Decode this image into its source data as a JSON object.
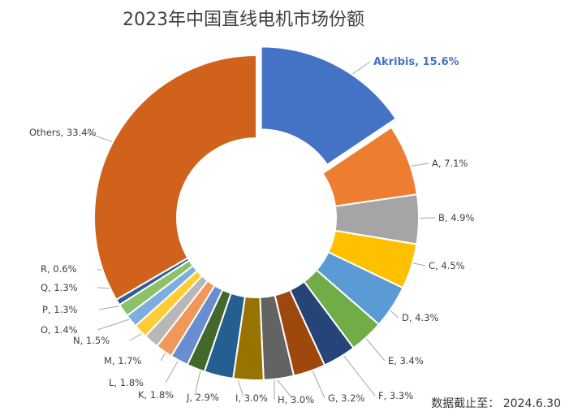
{
  "chart_data": {
    "type": "pie",
    "title": "2023年中国直线电机市场份额",
    "note": "数据截止至：  2024.6.30",
    "unit": "%",
    "slices": [
      {
        "name": "Akribis",
        "value": 15.6,
        "color": "#4472c4",
        "highlight": true
      },
      {
        "name": "A",
        "value": 7.1,
        "color": "#ed7d31"
      },
      {
        "name": "B",
        "value": 4.9,
        "color": "#a5a5a5"
      },
      {
        "name": "C",
        "value": 4.5,
        "color": "#ffc000"
      },
      {
        "name": "D",
        "value": 4.3,
        "color": "#5b9bd5"
      },
      {
        "name": "E",
        "value": 3.4,
        "color": "#70ad47"
      },
      {
        "name": "F",
        "value": 3.3,
        "color": "#264478"
      },
      {
        "name": "G",
        "value": 3.2,
        "color": "#9e480e"
      },
      {
        "name": "H",
        "value": 3.0,
        "color": "#636363"
      },
      {
        "name": "I",
        "value": 3.0,
        "color": "#997300"
      },
      {
        "name": "J",
        "value": 2.9,
        "color": "#255e91"
      },
      {
        "name": "K",
        "value": 1.8,
        "color": "#43682b"
      },
      {
        "name": "L",
        "value": 1.8,
        "color": "#698ed0"
      },
      {
        "name": "M",
        "value": 1.7,
        "color": "#f1975a"
      },
      {
        "name": "N",
        "value": 1.5,
        "color": "#b7b7b7"
      },
      {
        "name": "O",
        "value": 1.4,
        "color": "#ffcd33"
      },
      {
        "name": "P",
        "value": 1.3,
        "color": "#7cafdd"
      },
      {
        "name": "Q",
        "value": 1.3,
        "color": "#8cc168"
      },
      {
        "name": "R",
        "value": 0.6,
        "color": "#335aa1"
      },
      {
        "name": "Others",
        "value": 33.4,
        "color": "#d0621c"
      }
    ]
  }
}
